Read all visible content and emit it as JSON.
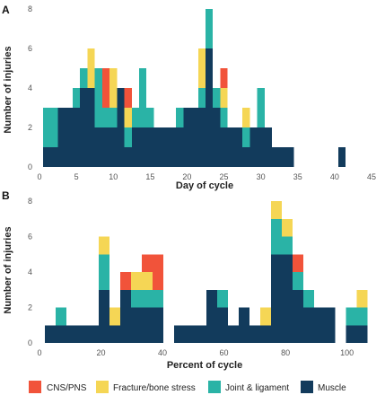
{
  "colors": {
    "CNS/PNS": "#f1533a",
    "Fracture/bone stress": "#f5d655",
    "Joint & ligament": "#2ab3a6",
    "Muscle": "#123b5c"
  },
  "legend": [
    "CNS/PNS",
    "Fracture/bone stress",
    "Joint & ligament",
    "Muscle"
  ],
  "chart_data": [
    {
      "panel_label": "A",
      "type": "bar",
      "stacked": true,
      "xlabel": "Day of cycle",
      "ylabel": "Number of injuries",
      "xlim": [
        0,
        45
      ],
      "ylim": [
        0,
        8
      ],
      "xticks": [
        "0",
        "5",
        "10",
        "15",
        "20",
        "25",
        "30",
        "35",
        "40",
        "45"
      ],
      "yticks": [
        "0",
        "2",
        "4",
        "6",
        "8"
      ],
      "bin_width": 1,
      "bins": [
        {
          "x": 1,
          "Muscle": 1,
          "Joint & ligament": 2
        },
        {
          "x": 2,
          "Muscle": 1,
          "Joint & ligament": 2
        },
        {
          "x": 3,
          "Muscle": 3
        },
        {
          "x": 4,
          "Muscle": 3
        },
        {
          "x": 5,
          "Muscle": 3,
          "Joint & ligament": 1
        },
        {
          "x": 6,
          "Muscle": 4,
          "Joint & ligament": 1
        },
        {
          "x": 7,
          "Muscle": 4,
          "Fracture/bone stress": 2
        },
        {
          "x": 8,
          "Muscle": 2,
          "Joint & ligament": 3
        },
        {
          "x": 9,
          "Muscle": 2,
          "Joint & ligament": 1,
          "CNS/PNS": 2
        },
        {
          "x": 10,
          "Muscle": 2,
          "Joint & ligament": 1,
          "Fracture/bone stress": 2
        },
        {
          "x": 11,
          "Muscle": 4
        },
        {
          "x": 12,
          "Muscle": 1,
          "Joint & ligament": 1,
          "Fracture/bone stress": 1,
          "CNS/PNS": 1
        },
        {
          "x": 13,
          "Muscle": 2,
          "Joint & ligament": 1
        },
        {
          "x": 14,
          "Muscle": 2,
          "Joint & ligament": 3
        },
        {
          "x": 15,
          "Muscle": 2,
          "Joint & ligament": 1
        },
        {
          "x": 16,
          "Muscle": 2
        },
        {
          "x": 17,
          "Muscle": 2
        },
        {
          "x": 18,
          "Muscle": 2
        },
        {
          "x": 19,
          "Muscle": 2,
          "Joint & ligament": 1
        },
        {
          "x": 20,
          "Muscle": 3
        },
        {
          "x": 21,
          "Muscle": 3
        },
        {
          "x": 22,
          "Muscle": 3,
          "Joint & ligament": 1,
          "Fracture/bone stress": 2
        },
        {
          "x": 23,
          "Muscle": 6,
          "Joint & ligament": 2
        },
        {
          "x": 24,
          "Muscle": 3,
          "Joint & ligament": 1
        },
        {
          "x": 25,
          "Muscle": 2,
          "Joint & ligament": 1,
          "Fracture/bone stress": 1,
          "CNS/PNS": 1
        },
        {
          "x": 26,
          "Muscle": 2
        },
        {
          "x": 27,
          "Muscle": 2
        },
        {
          "x": 28,
          "Muscle": 1,
          "Joint & ligament": 1,
          "Fracture/bone stress": 1
        },
        {
          "x": 29,
          "Muscle": 2
        },
        {
          "x": 30,
          "Muscle": 2,
          "Joint & ligament": 2
        },
        {
          "x": 31,
          "Muscle": 2
        },
        {
          "x": 32,
          "Muscle": 1
        },
        {
          "x": 33,
          "Muscle": 1
        },
        {
          "x": 34,
          "Muscle": 1
        },
        {
          "x": 41,
          "Muscle": 1
        }
      ]
    },
    {
      "panel_label": "B",
      "type": "bar",
      "stacked": true,
      "xlabel": "Percent of cycle",
      "ylabel": "Number of injuries",
      "xlim": [
        0,
        108
      ],
      "ylim": [
        0,
        8
      ],
      "xticks": [
        "0",
        "20",
        "40",
        "60",
        "80",
        "100"
      ],
      "yticks": [
        "0",
        "2",
        "4",
        "6",
        "8"
      ],
      "bin_width": 3.5,
      "bins": [
        {
          "x": 3.5,
          "Muscle": 1
        },
        {
          "x": 7,
          "Muscle": 1,
          "Joint & ligament": 1
        },
        {
          "x": 10.5,
          "Muscle": 1
        },
        {
          "x": 14,
          "Muscle": 1
        },
        {
          "x": 17.5,
          "Muscle": 1
        },
        {
          "x": 21,
          "Muscle": 3,
          "Joint & ligament": 2,
          "Fracture/bone stress": 1
        },
        {
          "x": 24.5,
          "Muscle": 1,
          "Fracture/bone stress": 1
        },
        {
          "x": 28,
          "Muscle": 3,
          "CNS/PNS": 1
        },
        {
          "x": 31.5,
          "Muscle": 2,
          "Joint & ligament": 1,
          "Fracture/bone stress": 1
        },
        {
          "x": 35,
          "Muscle": 2,
          "Joint & ligament": 1,
          "Fracture/bone stress": 1,
          "CNS/PNS": 1
        },
        {
          "x": 38.5,
          "Muscle": 2,
          "Joint & ligament": 1,
          "CNS/PNS": 2
        },
        {
          "x": 45.5,
          "Muscle": 1
        },
        {
          "x": 49,
          "Muscle": 1
        },
        {
          "x": 52.5,
          "Muscle": 1
        },
        {
          "x": 56,
          "Muscle": 3
        },
        {
          "x": 59.5,
          "Muscle": 2,
          "Joint & ligament": 1
        },
        {
          "x": 63,
          "Muscle": 1
        },
        {
          "x": 66.5,
          "Muscle": 2
        },
        {
          "x": 70,
          "Muscle": 1
        },
        {
          "x": 73.5,
          "Muscle": 1,
          "Fracture/bone stress": 1
        },
        {
          "x": 77,
          "Muscle": 5,
          "Joint & ligament": 2,
          "Fracture/bone stress": 1
        },
        {
          "x": 80.5,
          "Muscle": 5,
          "Joint & ligament": 1,
          "Fracture/bone stress": 1
        },
        {
          "x": 84,
          "Muscle": 3,
          "Joint & ligament": 1,
          "CNS/PNS": 1
        },
        {
          "x": 87.5,
          "Muscle": 2,
          "Joint & ligament": 1
        },
        {
          "x": 91,
          "Muscle": 2
        },
        {
          "x": 94.5,
          "Muscle": 2
        },
        {
          "x": 101.5,
          "Muscle": 1,
          "Joint & ligament": 1
        },
        {
          "x": 105,
          "Muscle": 1,
          "Joint & ligament": 1,
          "Fracture/bone stress": 1
        }
      ]
    }
  ]
}
